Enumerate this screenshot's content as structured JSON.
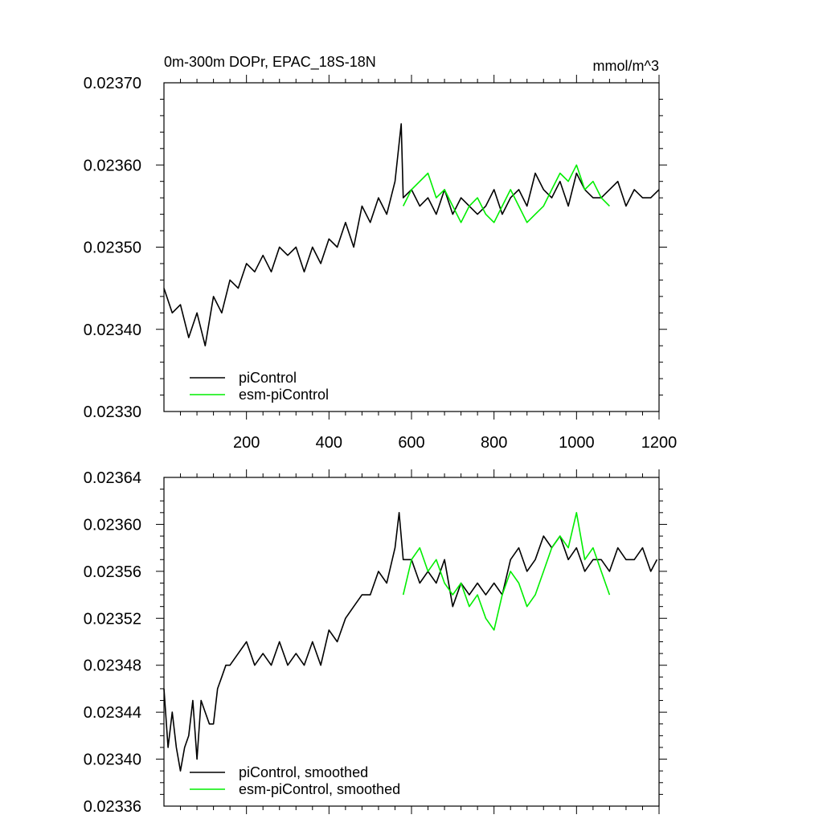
{
  "chart_data": [
    {
      "type": "line",
      "title": "0m-300m DOPr, EPAC_18S-18N",
      "units": "mmol/m^3",
      "xlim": [
        0,
        1200
      ],
      "ylim": [
        0.0233,
        0.0237
      ],
      "xticks": [
        200,
        400,
        600,
        800,
        1000,
        1200
      ],
      "xtick_labels": [
        "200",
        "400",
        "600",
        "800",
        "1000",
        "1200"
      ],
      "yticks": [
        0.0233,
        0.0234,
        0.0235,
        0.0236,
        0.0237
      ],
      "ytick_labels": [
        "0.02330",
        "0.02340",
        "0.02350",
        "0.02360",
        "0.02370"
      ],
      "legend_position": "bottom-left",
      "series": [
        {
          "name": "piControl",
          "color": "#000000",
          "x": [
            0,
            20,
            40,
            60,
            80,
            100,
            120,
            140,
            160,
            180,
            200,
            220,
            240,
            260,
            280,
            300,
            320,
            340,
            360,
            380,
            400,
            420,
            440,
            460,
            480,
            500,
            520,
            540,
            560,
            575,
            580,
            600,
            620,
            640,
            660,
            680,
            700,
            720,
            740,
            760,
            780,
            800,
            820,
            840,
            860,
            880,
            900,
            920,
            940,
            960,
            980,
            1000,
            1020,
            1040,
            1060,
            1080,
            1100,
            1120,
            1140,
            1160,
            1180,
            1200
          ],
          "y": [
            0.02345,
            0.02342,
            0.02343,
            0.02339,
            0.02342,
            0.02338,
            0.02344,
            0.02342,
            0.02346,
            0.02345,
            0.02348,
            0.02347,
            0.02349,
            0.02347,
            0.0235,
            0.02349,
            0.0235,
            0.02347,
            0.0235,
            0.02348,
            0.02351,
            0.0235,
            0.02353,
            0.0235,
            0.02355,
            0.02353,
            0.02356,
            0.02354,
            0.02358,
            0.02365,
            0.02356,
            0.02357,
            0.02355,
            0.02356,
            0.02354,
            0.02357,
            0.02354,
            0.02356,
            0.02355,
            0.02354,
            0.02355,
            0.02357,
            0.02354,
            0.02356,
            0.02357,
            0.02355,
            0.02359,
            0.02357,
            0.02356,
            0.02358,
            0.02355,
            0.02359,
            0.02357,
            0.02356,
            0.02356,
            0.02357,
            0.02358,
            0.02355,
            0.02357,
            0.02356,
            0.02356,
            0.02357
          ]
        },
        {
          "name": "esm-piControl",
          "color": "#00ee00",
          "x": [
            580,
            600,
            620,
            640,
            660,
            680,
            700,
            720,
            740,
            760,
            780,
            800,
            820,
            840,
            860,
            880,
            900,
            920,
            940,
            960,
            980,
            1000,
            1020,
            1040,
            1060,
            1080
          ],
          "y": [
            0.02355,
            0.02357,
            0.02358,
            0.02359,
            0.02356,
            0.02357,
            0.02355,
            0.02353,
            0.02355,
            0.02356,
            0.02354,
            0.02353,
            0.02355,
            0.02357,
            0.02355,
            0.02353,
            0.02354,
            0.02355,
            0.02357,
            0.02359,
            0.02358,
            0.0236,
            0.02357,
            0.02358,
            0.02356,
            0.02355
          ]
        }
      ]
    },
    {
      "type": "line",
      "title": "",
      "xlim": [
        0,
        1200
      ],
      "ylim": [
        0.02336,
        0.02364
      ],
      "xticks": [
        200,
        400,
        600,
        800,
        1000,
        1200
      ],
      "yticks": [
        0.02336,
        0.0234,
        0.02344,
        0.02348,
        0.02352,
        0.02356,
        0.0236,
        0.02364
      ],
      "ytick_labels": [
        "0.02336",
        "0.02340",
        "0.02344",
        "0.02348",
        "0.02352",
        "0.02356",
        "0.02360",
        "0.02364"
      ],
      "legend_position": "bottom-left",
      "series": [
        {
          "name": "piControl, smoothed",
          "color": "#000000",
          "x": [
            0,
            10,
            20,
            30,
            40,
            50,
            60,
            70,
            80,
            90,
            100,
            110,
            120,
            130,
            140,
            150,
            160,
            180,
            200,
            220,
            240,
            260,
            280,
            300,
            320,
            340,
            360,
            380,
            400,
            420,
            440,
            460,
            480,
            500,
            520,
            540,
            560,
            570,
            580,
            600,
            620,
            640,
            660,
            680,
            700,
            720,
            740,
            760,
            780,
            800,
            820,
            840,
            860,
            880,
            900,
            920,
            940,
            960,
            980,
            1000,
            1020,
            1040,
            1060,
            1080,
            1100,
            1120,
            1140,
            1160,
            1180,
            1195
          ],
          "y": [
            0.02346,
            0.02341,
            0.02344,
            0.02341,
            0.02339,
            0.02341,
            0.02342,
            0.02345,
            0.0234,
            0.02345,
            0.02344,
            0.02343,
            0.02343,
            0.02346,
            0.02347,
            0.02348,
            0.02348,
            0.02349,
            0.0235,
            0.02348,
            0.02349,
            0.02348,
            0.0235,
            0.02348,
            0.02349,
            0.02348,
            0.0235,
            0.02348,
            0.02351,
            0.0235,
            0.02352,
            0.02353,
            0.02354,
            0.02354,
            0.02356,
            0.02355,
            0.02358,
            0.02361,
            0.02357,
            0.02357,
            0.02355,
            0.02356,
            0.02355,
            0.02357,
            0.02353,
            0.02355,
            0.02354,
            0.02355,
            0.02354,
            0.02355,
            0.02354,
            0.02357,
            0.02358,
            0.02356,
            0.02357,
            0.02359,
            0.02358,
            0.02359,
            0.02357,
            0.02358,
            0.02356,
            0.02357,
            0.02357,
            0.02356,
            0.02358,
            0.02357,
            0.02357,
            0.02358,
            0.02356,
            0.02357
          ]
        },
        {
          "name": "esm-piControl, smoothed",
          "color": "#00ee00",
          "x": [
            580,
            600,
            620,
            640,
            660,
            680,
            700,
            720,
            740,
            760,
            780,
            800,
            820,
            840,
            860,
            880,
            900,
            920,
            940,
            960,
            980,
            1000,
            1020,
            1040,
            1060,
            1080
          ],
          "y": [
            0.02354,
            0.02357,
            0.02358,
            0.02356,
            0.02357,
            0.02355,
            0.02354,
            0.02355,
            0.02353,
            0.02354,
            0.02352,
            0.02351,
            0.02354,
            0.02356,
            0.02355,
            0.02353,
            0.02354,
            0.02356,
            0.02358,
            0.02359,
            0.02358,
            0.02361,
            0.02357,
            0.02358,
            0.02356,
            0.02354
          ]
        }
      ]
    }
  ]
}
